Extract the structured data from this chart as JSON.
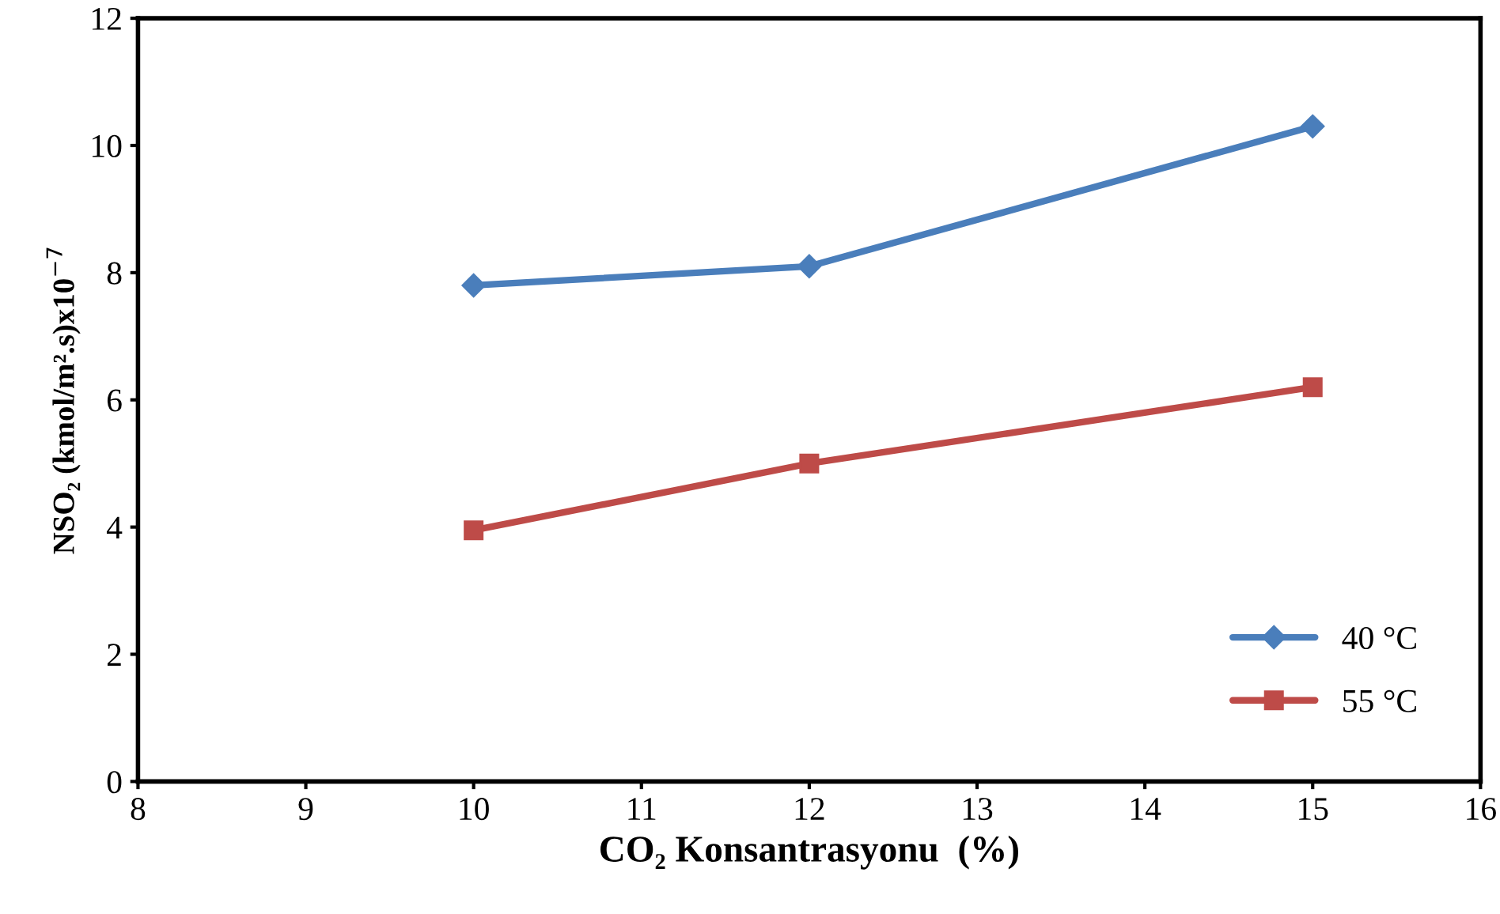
{
  "chart_data": {
    "type": "line",
    "xlabel": "CO₂ Konsantrasyonu  (%)",
    "ylabel": "NSO₂ (kmol/m².s)x10$^{−7}$",
    "series": [
      {
        "name": "40 °C",
        "color": "#4a7ebb",
        "marker": "diamond",
        "x": [
          10,
          12,
          15
        ],
        "values": [
          7.8,
          8.1,
          10.3
        ]
      },
      {
        "name": "55 °C",
        "color": "#be4b48",
        "marker": "square",
        "x": [
          10,
          12,
          15
        ],
        "values": [
          3.95,
          5.0,
          6.2
        ]
      }
    ],
    "xlim": [
      8,
      16
    ],
    "xticks": [
      8,
      9,
      10,
      11,
      12,
      13,
      14,
      15,
      16
    ],
    "ylim": [
      0,
      12
    ],
    "yticks": [
      0,
      2,
      4,
      6,
      8,
      10,
      12
    ],
    "grid": false,
    "legend": "bottom right",
    "line_style": "solid"
  }
}
